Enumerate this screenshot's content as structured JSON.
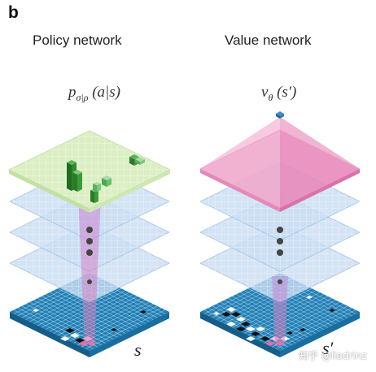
{
  "panel": {
    "letter": "b"
  },
  "policy": {
    "title": "Policy network",
    "formula_main": "p",
    "formula_sub": "σ|ρ",
    "formula_rest": " (a|s)",
    "state_label": "s"
  },
  "value": {
    "title": "Value network",
    "formula_main": "v",
    "formula_sub": "θ",
    "formula_rest": " (s′)",
    "state_label": "s′"
  },
  "watermark": "知乎 @liadrinz",
  "colors": {
    "board": "#1f7fb6",
    "policy_output": "#dcefc4",
    "value_output": "#f2b7d5",
    "hidden_layer": "#c9ddf2",
    "bar_green": "#2e8b2e",
    "dot": "#444444"
  },
  "icons": {
    "policy_bars": "green-probability-bars-icon",
    "value_peak": "blue-value-cube-icon"
  }
}
